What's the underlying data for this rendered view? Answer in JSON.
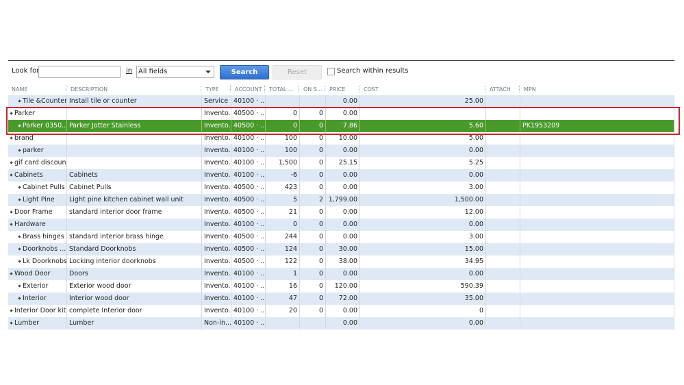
{
  "search": {
    "look_for_label": "Look for",
    "in_label": "in",
    "field_select": "All fields",
    "search_button": "Search",
    "reset_button": "Reset",
    "within_results_label": "Search within results"
  },
  "table": {
    "columns": [
      "NAME",
      "DESCRIPTION",
      "TYPE",
      "ACCOUNT",
      "TOTAL ...",
      "ON S...",
      "PRICE",
      "COST",
      "ATTACH",
      "MPN"
    ],
    "rows": [
      [
        "Tile &Counter",
        "Install tile or counter",
        "Service",
        "40100 · ...",
        null,
        null,
        "0.00",
        "25.00",
        null,
        null
      ],
      [
        "Parker",
        null,
        "Invento...",
        "40500 · ...",
        "0",
        "0",
        "0.00",
        null,
        null,
        null
      ],
      [
        "Parker 0350...",
        "Parker Jotter Stainless",
        "Invento...",
        "40500 · ...",
        "0",
        "0",
        "7.86",
        "5.60",
        null,
        "PK1953209"
      ],
      [
        "brand",
        null,
        "Invento...",
        "40100 · ...",
        "100",
        "0",
        "10.00",
        "5.00",
        null,
        null
      ],
      [
        "parker",
        null,
        "Invento...",
        "40100 · ...",
        "100",
        "0",
        "0.00",
        "0.00",
        null,
        null
      ],
      [
        "gif card discount",
        null,
        "Invento...",
        "40100 · ...",
        "1,500",
        "0",
        "25.15",
        "5.25",
        null,
        null
      ],
      [
        "Cabinets",
        "Cabinets",
        "Invento...",
        "40100 · ...",
        "-6",
        "0",
        "0.00",
        "0.00",
        null,
        null
      ],
      [
        "Cabinet Pulls",
        "Cabinet Pulls",
        "Invento...",
        "40500 · ...",
        "423",
        "0",
        "0.00",
        "3.00",
        null,
        null
      ],
      [
        "Light Pine",
        "Light pine kitchen cabinet wall unit",
        "Invento...",
        "40500 · ...",
        "5",
        "2",
        "1,799.00",
        "1,500.00",
        null,
        null
      ],
      [
        "Door Frame",
        "standard interior door frame",
        "Invento...",
        "40500 · ...",
        "21",
        "0",
        "0.00",
        "12.00",
        null,
        null
      ],
      [
        "Hardware",
        null,
        "Invento...",
        "40100 · ...",
        "0",
        "0",
        "0.00",
        "0.00",
        null,
        null
      ],
      [
        "Brass hinges",
        "standard interior brass hinge",
        "Invento...",
        "40500 · ...",
        "244",
        "0",
        "0.00",
        "3.00",
        null,
        null
      ],
      [
        "Doorknobs ...",
        "Standard Doorknobs",
        "Invento...",
        "40500 · ...",
        "124",
        "0",
        "30.00",
        "15.00",
        null,
        null
      ],
      [
        "Lk Doorknobs",
        "Locking interior doorknobs",
        "Invento...",
        "40500 · ...",
        "122",
        "0",
        "38.00",
        "34.95",
        null,
        null
      ],
      [
        "Wood Door",
        "Doors",
        "Invento...",
        "40100 · ...",
        "1",
        "0",
        "0.00",
        "0.00",
        null,
        null
      ],
      [
        "Exterior",
        "Exterior wood door",
        "Invento...",
        "40100 · ...",
        "16",
        "0",
        "120.00",
        "590.39",
        null,
        null
      ],
      [
        "Interior",
        "Interior wood door",
        "Invento...",
        "40100 · ...",
        "47",
        "0",
        "72.00",
        "35.00",
        null,
        null
      ],
      [
        "Interior Door kit",
        "complete Interior door",
        "Invento...",
        "40100 · ...",
        "20",
        "0",
        "0.00",
        "0",
        null,
        null
      ],
      [
        "Lumber",
        "Lumber",
        "Non-in...",
        "40100 · ...",
        null,
        null,
        "0.00",
        "0.00",
        null,
        null
      ]
    ]
  }
}
